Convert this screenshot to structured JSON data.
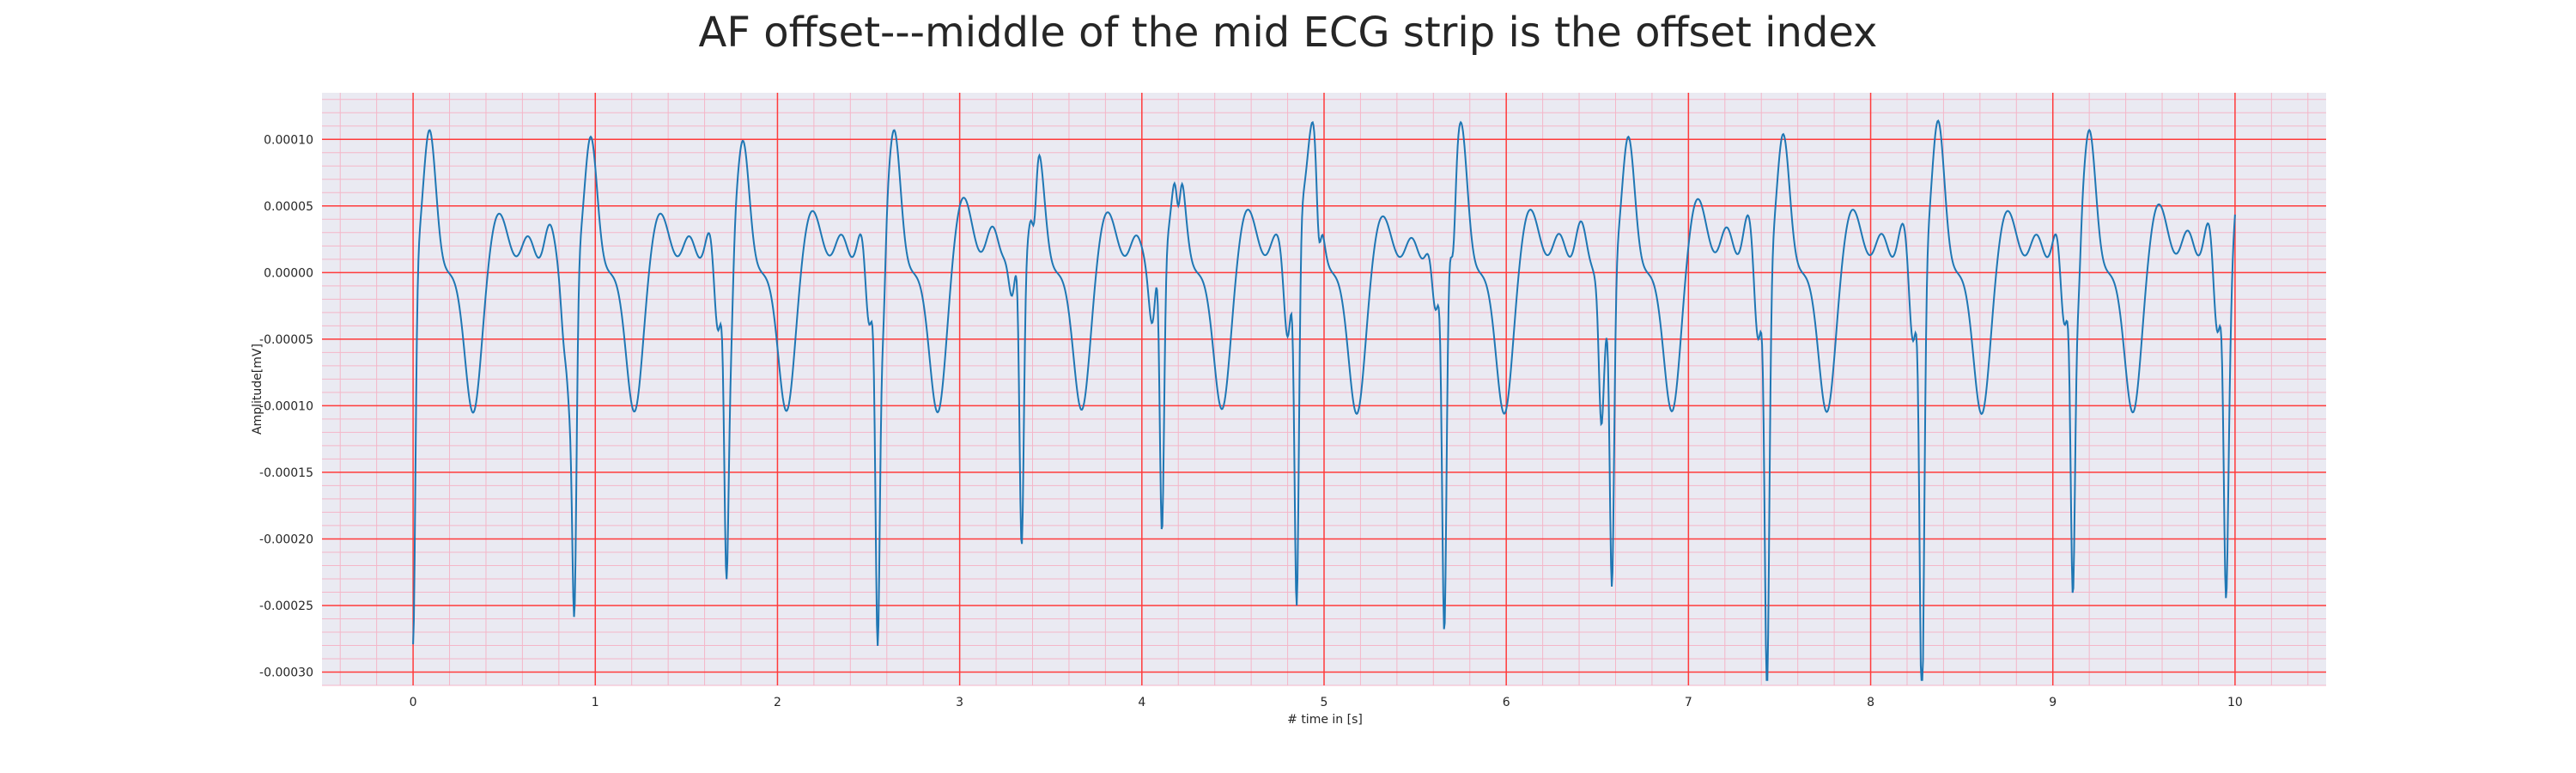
{
  "chart_data": {
    "type": "line",
    "title": "AF offset---middle of the mid ECG strip is the offset index",
    "xlabel": "# time in [s]",
    "ylabel": "Amplitude[mV]",
    "xlim": [
      -0.5,
      10.5
    ],
    "ylim": [
      -0.00031,
      0.000135
    ],
    "x_ticks": [
      0,
      1,
      2,
      3,
      4,
      5,
      6,
      7,
      8,
      9,
      10
    ],
    "x_tick_labels": [
      "0",
      "1",
      "2",
      "3",
      "4",
      "5",
      "6",
      "7",
      "8",
      "9",
      "10"
    ],
    "y_ticks": [
      0.0001,
      5e-05,
      0.0,
      -5e-05,
      -0.0001,
      -0.00015,
      -0.0002,
      -0.00025,
      -0.0003
    ],
    "y_tick_labels": [
      "0.00010",
      "0.00005",
      "0.00000",
      "-0.00005",
      "-0.00010",
      "-0.00015",
      "-0.00020",
      "-0.00025",
      "-0.00030"
    ],
    "grid": true,
    "colors": {
      "line": "#1f77b4",
      "plot_background": "#eaeaf2",
      "major_grid": "#ff3b3b",
      "minor_grid": "#f4b6c8"
    },
    "series": [
      {
        "name": "",
        "beats": [
          {
            "t": 0.0,
            "r": 0.000107,
            "s": -0.000283,
            "t_wave": 4.5e-05,
            "notch": -6e-05
          },
          {
            "t": 0.885,
            "r": 0.000102,
            "s": -0.000252,
            "t_wave": 4.5e-05,
            "notch": -6e-05
          },
          {
            "t": 1.72,
            "r": 9.9e-05,
            "s": -0.000225,
            "t_wave": 4.7e-05,
            "notch": -6e-05
          },
          {
            "t": 2.55,
            "r": 0.000107,
            "s": -0.00028,
            "t_wave": 5.7e-05,
            "notch": -4e-05
          },
          {
            "t": 3.34,
            "r": 9.3e-05,
            "s": -0.000225,
            "t_wave": 4.6e-05,
            "notch": -4e-05
          },
          {
            "t": 4.11,
            "r": 9e-05,
            "s": -0.000225,
            "t_wave": 4.8e-05,
            "notch": -5e-05
          },
          {
            "t": 4.85,
            "r": 0.000113,
            "s": -0.000288,
            "t_wave": 4.3e-05,
            "notch": -4e-05
          },
          {
            "t": 5.66,
            "r": 0.000113,
            "s": -0.000276,
            "t_wave": 4.8e-05,
            "notch": -6e-05
          },
          {
            "t": 6.58,
            "r": 0.000102,
            "s": -0.000237,
            "t_wave": 5.6e-05,
            "notch": -5e-05
          },
          {
            "t": 7.43,
            "r": 0.000104,
            "s": -0.000278,
            "t_wave": 4.8e-05,
            "notch": -6e-05
          },
          {
            "t": 8.28,
            "r": 0.000114,
            "s": -0.00029,
            "t_wave": 4.7e-05,
            "notch": -4e-05
          },
          {
            "t": 9.11,
            "r": 0.000107,
            "s": -0.000243,
            "t_wave": 5.2e-05,
            "notch": -5e-05
          },
          {
            "t": 9.95,
            "r": 8.8e-05,
            "s": -0.000233,
            "t_wave": 0.0,
            "notch": -6e-05
          }
        ]
      }
    ]
  }
}
